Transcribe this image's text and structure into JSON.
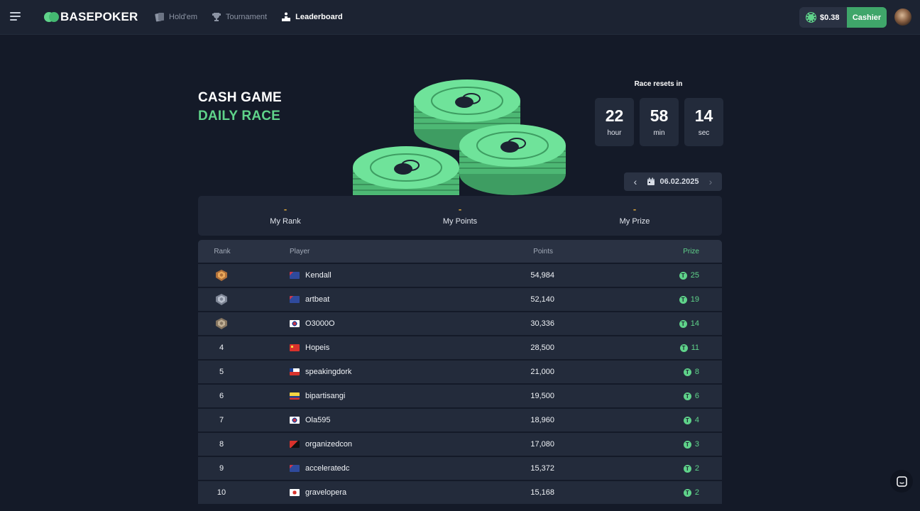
{
  "header": {
    "logo": "BASEPOKER",
    "nav": [
      {
        "label": "Hold'em",
        "icon": "cards-icon"
      },
      {
        "label": "Tournament",
        "icon": "trophy-icon"
      },
      {
        "label": "Leaderboard",
        "icon": "podium-icon",
        "active": true
      }
    ],
    "balance": "$0.38",
    "cashier_label": "Cashier"
  },
  "hero": {
    "title_line1": "CASH GAME",
    "title_line2": "DAILY RACE",
    "reset_label": "Race resets in",
    "timer": [
      {
        "value": "22",
        "unit": "hour"
      },
      {
        "value": "58",
        "unit": "min"
      },
      {
        "value": "14",
        "unit": "sec"
      }
    ],
    "date": "06.02.2025"
  },
  "stats": [
    {
      "value": "-",
      "label": "My Rank"
    },
    {
      "value": "-",
      "label": "My Points"
    },
    {
      "value": "-",
      "label": "My Prize"
    }
  ],
  "table": {
    "headers": {
      "rank": "Rank",
      "player": "Player",
      "points": "Points",
      "prize": "Prize"
    },
    "rows": [
      {
        "rank": "",
        "medal": "gold",
        "flag": "au",
        "player": "Kendall",
        "points": "54,984",
        "prize": "25"
      },
      {
        "rank": "",
        "medal": "silver",
        "flag": "au",
        "player": "artbeat",
        "points": "52,140",
        "prize": "19"
      },
      {
        "rank": "",
        "medal": "bronze",
        "flag": "kr",
        "player": "O3000O",
        "points": "30,336",
        "prize": "14"
      },
      {
        "rank": "4",
        "flag": "cn",
        "player": "Hopeis",
        "points": "28,500",
        "prize": "11"
      },
      {
        "rank": "5",
        "flag": "cl",
        "player": "speakingdork",
        "points": "21,000",
        "prize": "8"
      },
      {
        "rank": "6",
        "flag": "co",
        "player": "bipartisangi",
        "points": "19,500",
        "prize": "6"
      },
      {
        "rank": "7",
        "flag": "kr",
        "player": "Ola595",
        "points": "18,960",
        "prize": "4"
      },
      {
        "rank": "8",
        "flag": "pg",
        "player": "organizedcon",
        "points": "17,080",
        "prize": "3"
      },
      {
        "rank": "9",
        "flag": "au",
        "player": "acceleratedc",
        "points": "15,372",
        "prize": "2"
      },
      {
        "rank": "10",
        "flag": "jp",
        "player": "gravelopera",
        "points": "15,168",
        "prize": "2"
      }
    ]
  },
  "colors": {
    "accent": "#5fd38a",
    "background": "#141a28",
    "panel": "#232b3b",
    "highlight": "#e0a93a"
  }
}
